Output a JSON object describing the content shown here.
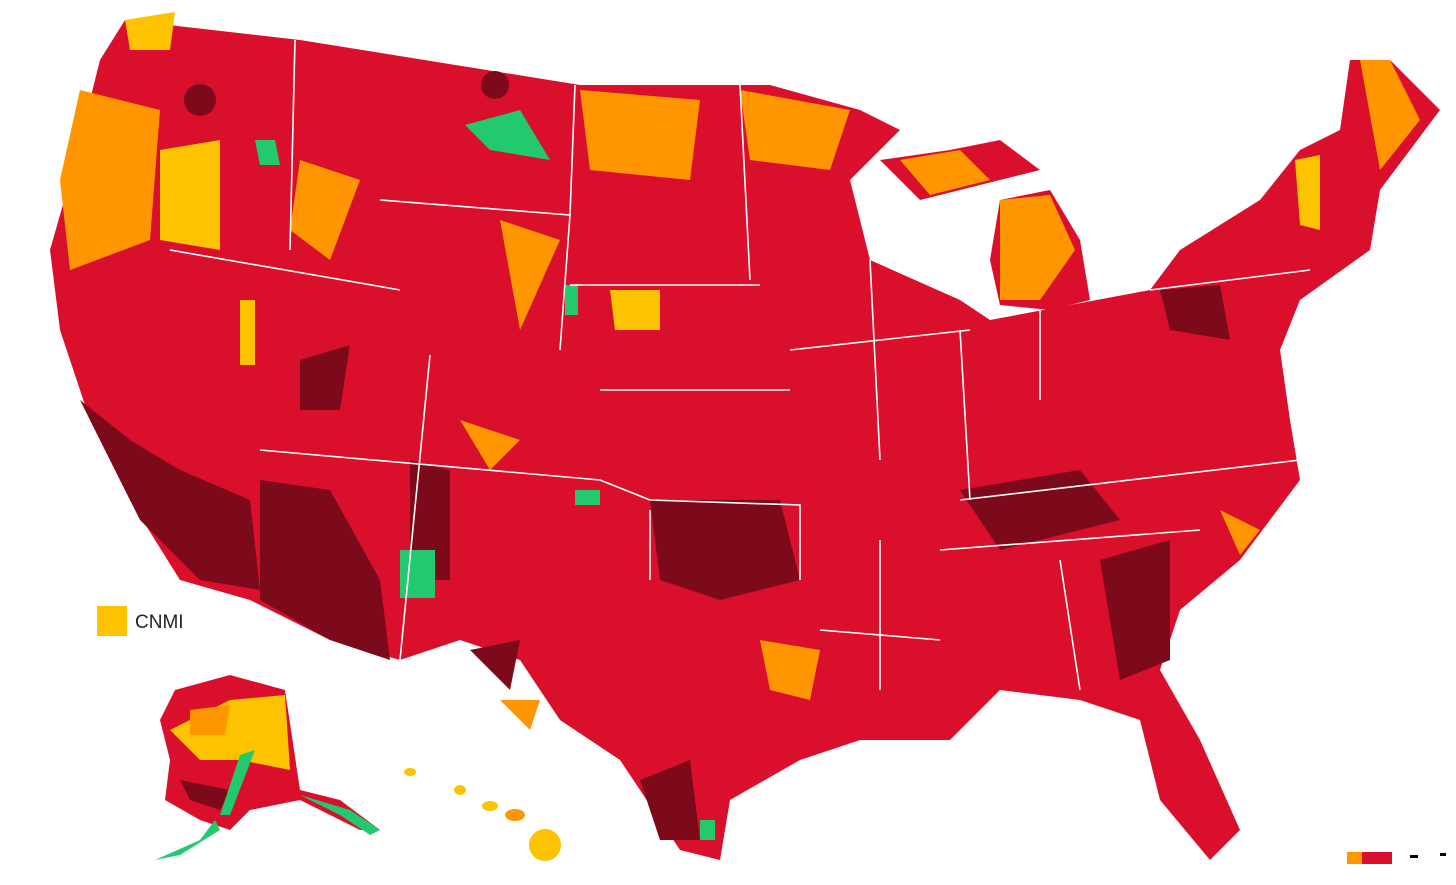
{
  "legend": {
    "label": "CNMI",
    "color": "#fdc300"
  }
}
